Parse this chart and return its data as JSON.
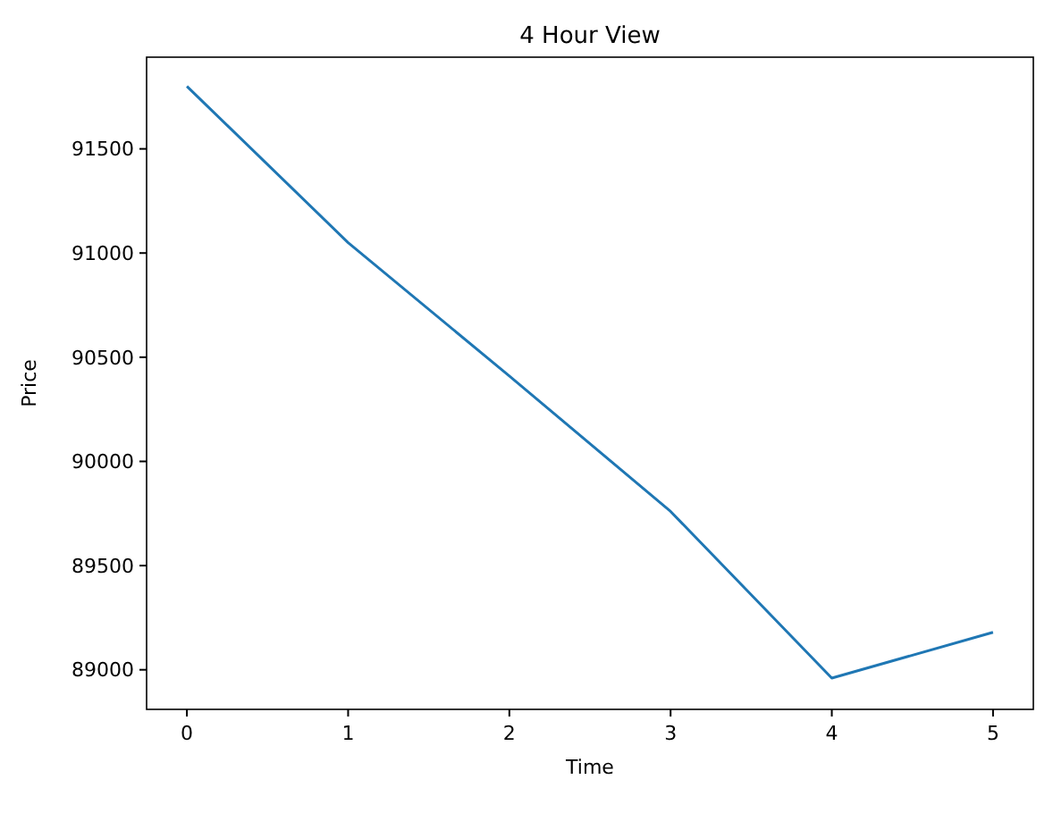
{
  "chart_data": {
    "type": "line",
    "title": "4 Hour View",
    "xlabel": "Time",
    "ylabel": "Price",
    "x": [
      0,
      1,
      2,
      3,
      4,
      5
    ],
    "series": [
      {
        "color": "#1f77b4",
        "values": [
          91800,
          91050,
          90410,
          89760,
          88960,
          89180
        ]
      }
    ],
    "xlim": [
      -0.25,
      5.25
    ],
    "xticks": [
      0,
      1,
      2,
      3,
      4,
      5
    ],
    "ylim": [
      88810,
      91940
    ],
    "yticks": [
      89000,
      89500,
      90000,
      90500,
      91000,
      91500
    ],
    "grid": false,
    "marker": "none",
    "line_style": "solid"
  }
}
